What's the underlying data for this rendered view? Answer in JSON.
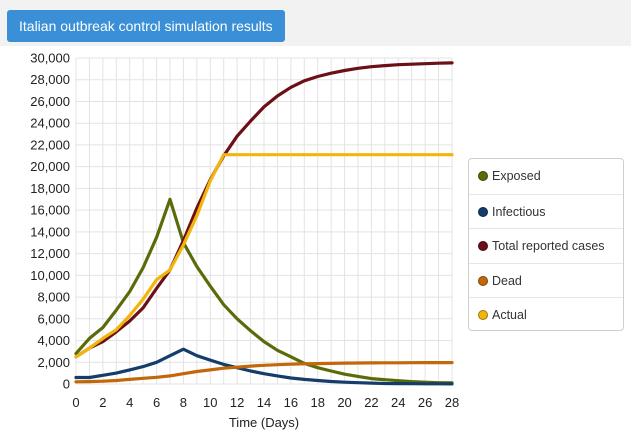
{
  "header": {
    "title_button": "Italian outbreak control simulation results"
  },
  "chart_data": {
    "type": "line",
    "xlabel": "Time (Days)",
    "ylabel": "",
    "xlim": [
      0,
      28
    ],
    "ylim": [
      0,
      30000
    ],
    "xticks": [
      0,
      2,
      4,
      6,
      8,
      10,
      12,
      14,
      16,
      18,
      20,
      22,
      24,
      26,
      28
    ],
    "yticks": [
      0,
      2000,
      4000,
      6000,
      8000,
      10000,
      12000,
      14000,
      16000,
      18000,
      20000,
      22000,
      24000,
      26000,
      28000,
      30000
    ],
    "xtick_labels": [
      "0",
      "2",
      "4",
      "6",
      "8",
      "10",
      "12",
      "14",
      "16",
      "18",
      "20",
      "22",
      "24",
      "26",
      "28"
    ],
    "ytick_labels": [
      "0",
      "2,000",
      "4,000",
      "6,000",
      "8,000",
      "10,000",
      "12,000",
      "14,000",
      "16,000",
      "18,000",
      "20,000",
      "22,000",
      "24,000",
      "26,000",
      "28,000",
      "30,000"
    ],
    "grid": true,
    "legend_position": "right",
    "series": [
      {
        "name": "Exposed",
        "color": "#5a6b0a",
        "x": [
          0,
          1,
          2,
          3,
          4,
          5,
          6,
          7,
          8,
          9,
          10,
          11,
          12,
          13,
          14,
          15,
          16,
          17,
          18,
          19,
          20,
          21,
          22,
          23,
          24,
          25,
          26,
          27,
          28
        ],
        "y": [
          2800,
          4200,
          5200,
          6800,
          8500,
          10700,
          13500,
          17000,
          13000,
          10800,
          9000,
          7300,
          6000,
          4900,
          3900,
          3100,
          2500,
          1900,
          1500,
          1200,
          900,
          700,
          500,
          400,
          300,
          220,
          170,
          120,
          100
        ]
      },
      {
        "name": "Infectious",
        "color": "#143d6b",
        "x": [
          0,
          1,
          2,
          3,
          4,
          5,
          6,
          7,
          8,
          9,
          10,
          11,
          12,
          13,
          14,
          15,
          16,
          17,
          18,
          19,
          20,
          21,
          22,
          23,
          24,
          25,
          26,
          27,
          28
        ],
        "y": [
          600,
          600,
          800,
          1000,
          1300,
          1600,
          2000,
          2600,
          3200,
          2600,
          2200,
          1800,
          1500,
          1200,
          950,
          750,
          550,
          420,
          320,
          230,
          170,
          120,
          80,
          50,
          40,
          30,
          20,
          15,
          10
        ]
      },
      {
        "name": "Total reported cases",
        "color": "#6b1016",
        "x": [
          0,
          1,
          2,
          3,
          4,
          5,
          6,
          7,
          8,
          9,
          10,
          11,
          12,
          13,
          14,
          15,
          16,
          17,
          18,
          19,
          20,
          21,
          22,
          23,
          24,
          25,
          26,
          27,
          28
        ],
        "y": [
          2500,
          3300,
          3900,
          4800,
          5800,
          7000,
          8800,
          10500,
          13200,
          16200,
          18800,
          21000,
          22800,
          24200,
          25500,
          26500,
          27300,
          27900,
          28300,
          28600,
          28850,
          29050,
          29200,
          29300,
          29380,
          29430,
          29480,
          29520,
          29550
        ]
      },
      {
        "name": "Dead",
        "color": "#c2670a",
        "x": [
          0,
          1,
          2,
          3,
          4,
          5,
          6,
          7,
          8,
          9,
          10,
          11,
          12,
          13,
          14,
          15,
          16,
          17,
          18,
          19,
          20,
          21,
          22,
          23,
          24,
          25,
          26,
          27,
          28
        ],
        "y": [
          200,
          220,
          260,
          320,
          420,
          520,
          620,
          750,
          950,
          1150,
          1300,
          1450,
          1550,
          1650,
          1720,
          1780,
          1820,
          1860,
          1880,
          1900,
          1920,
          1930,
          1940,
          1950,
          1955,
          1960,
          1965,
          1970,
          1970
        ]
      },
      {
        "name": "Actual",
        "color": "#f2b50c",
        "x": [
          0,
          1,
          2,
          3,
          4,
          5,
          6,
          7,
          8,
          9,
          10,
          11,
          12,
          13,
          14,
          15,
          16,
          17,
          18,
          19,
          20,
          21,
          22,
          23,
          24,
          25,
          26,
          27,
          28
        ],
        "y": [
          2500,
          3300,
          4200,
          5000,
          6300,
          7800,
          9600,
          10500,
          12800,
          15500,
          18700,
          21100,
          21100,
          21100,
          21100,
          21100,
          21100,
          21100,
          21100,
          21100,
          21100,
          21100,
          21100,
          21100,
          21100,
          21100,
          21100,
          21100,
          21100
        ]
      }
    ]
  }
}
